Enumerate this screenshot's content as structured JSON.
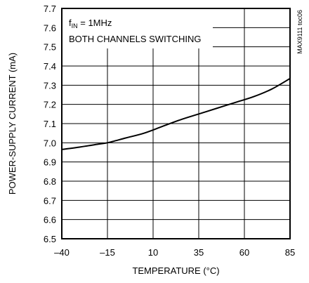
{
  "chart_data": {
    "type": "line",
    "title": "",
    "xlabel": "TEMPERATURE (°C)",
    "ylabel": "POWER-SUPPLY CURRENT (mA)",
    "xlim": [
      -40,
      85
    ],
    "ylim": [
      6.5,
      7.7
    ],
    "x_ticks": [
      -40,
      -15,
      10,
      35,
      60,
      85
    ],
    "y_ticks": [
      6.5,
      6.6,
      6.7,
      6.8,
      6.9,
      7.0,
      7.1,
      7.2,
      7.3,
      7.4,
      7.5,
      7.6,
      7.7
    ],
    "grid": true,
    "annotation": {
      "line1_prefix": "f",
      "line1_subscript": "IN",
      "line1_suffix": " = 1MHz",
      "line2": "BOTH CHANNELS SWITCHING"
    },
    "side_note": "MAX9111 toc06",
    "series": [
      {
        "x": [
          -40,
          -30,
          -20,
          -15,
          -5,
          5,
          15,
          25,
          35,
          45,
          55,
          65,
          75,
          85
        ],
        "y": [
          6.965,
          6.978,
          6.993,
          7.0,
          7.025,
          7.05,
          7.085,
          7.12,
          7.15,
          7.18,
          7.21,
          7.24,
          7.28,
          7.335
        ]
      }
    ]
  }
}
